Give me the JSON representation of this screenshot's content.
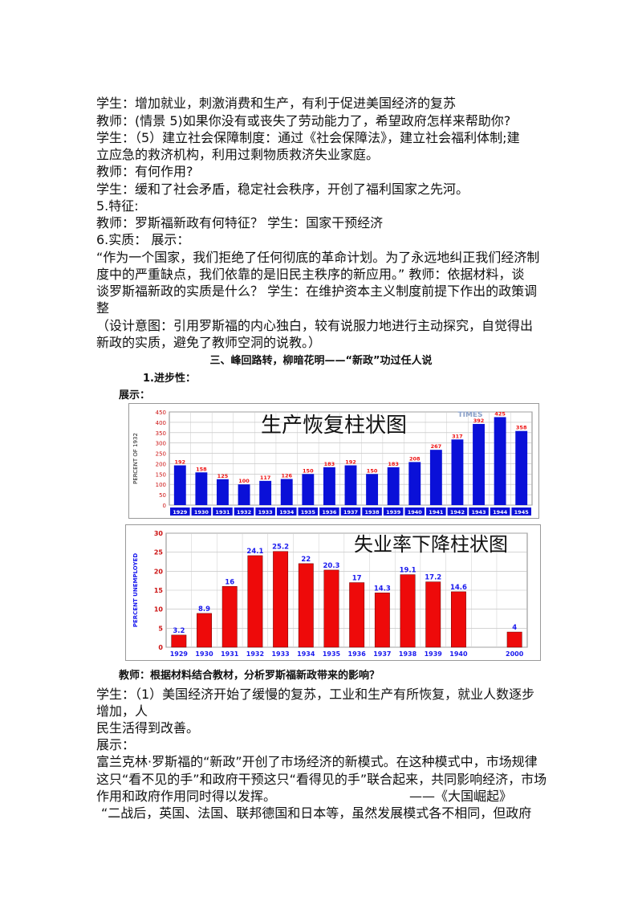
{
  "text": {
    "p1": "学生：增加就业，刺激消费和生产，有利于促进美国经济的复苏",
    "p2": "教师：(情景 5)如果你没有或丧失了劳动能力了，希望政府怎样来帮助你?",
    "p3a": "学生：（5）建立社会保障制度：通过《社会保障法》，建立社会福利体制;建",
    "p3b": "立应急的救济机构，利用过剩物质救济失业家庭。",
    "p4": "教师：有何作用?",
    "p5": "学生：缓和了社会矛盾，稳定社会秩序，开创了福利国家之先河。",
    "p6": "5.特征:",
    "p7": "教师：罗斯福新政有何特征？ 学生：国家干预经济",
    "p8": "6.实质：  展示：",
    "p9a": "“作为一个国家，我们拒绝了任何彻底的革命计划。为了永远地纠正我们经济制",
    "p9b": "度中的严重缺点，我们依靠的是旧民主秩序的新应用。” 教师：依据材料，谈",
    "p9c": "谈罗斯福新政的实质是什么？ 学生：在维护资本主义制度前提下作出的政策调",
    "p9d": "整",
    "p10a": "（设计意图：引用罗斯福的内心独白，较有说服力地进行主动探究，自觉得出",
    "p10b": "新政的实质，避免了教师空洞的说教。）",
    "section": "三、峰回路转，柳暗花明——“新政”功过任人说",
    "sub1": "1.进步性：",
    "show": "展示：",
    "teacher_q": "教师：根据材料结合教材，分析罗斯福新政带来的影响？",
    "s1a": "学生：（1）美国经济开始了缓慢的复苏，工业和生产有所恢复，就业人数逐步",
    "s1b": "增加，人",
    "s1c": "民生活得到改善。",
    "show2": "展示：",
    "q1a": "富兰克林·罗斯福的“新政”开创了市场经济的新模式。在这种模式中，市场规律",
    "q1b": "这只“看不见的手”和政府干预这只“看得见的手”联合起来，共同影响经济，市场",
    "q1c": "作用和政府作用同时得以发挥。",
    "q1src": "——《大国崛起》",
    "q2": "“二战后，英国、法国、联邦德国和日本等，虽然发展模式各不相同，但政府"
  },
  "colors": {
    "bar_blue": "#0a10d8",
    "bar_red": "#ee0a0a",
    "label_red": "#ee1111",
    "label_blue": "#1a1aee",
    "tick_red": "#cc1111"
  },
  "chart_data": [
    {
      "type": "bar",
      "title": "生产恢复柱状图",
      "ylabel": "PERCENT OF 1932",
      "watermark": "TIMES",
      "categories": [
        "1929",
        "1930",
        "1931",
        "1932",
        "1933",
        "1934",
        "1935",
        "1936",
        "1937",
        "1938",
        "1939",
        "1940",
        "1941",
        "1942",
        "1943",
        "1944",
        "1945"
      ],
      "values": [
        192,
        158,
        125,
        100,
        117,
        126,
        150,
        183,
        192,
        150,
        183,
        208,
        267,
        317,
        392,
        425,
        358
      ],
      "yticks": [
        "0",
        "50",
        "100",
        "150",
        "200",
        "250",
        "300",
        "350",
        "400",
        "450"
      ],
      "ylim": [
        0,
        450
      ],
      "grid": true
    },
    {
      "type": "bar",
      "title": "失业率下降柱状图",
      "ylabel": "PERCENT UNEMPLOYED",
      "categories": [
        "1929",
        "1930",
        "1931",
        "1932",
        "1933",
        "1934",
        "1935",
        "1936",
        "1937",
        "1938",
        "1939",
        "1940",
        "2000"
      ],
      "values": [
        3.2,
        8.9,
        16,
        24.1,
        25.2,
        22,
        20.3,
        17,
        14.3,
        19.1,
        17.2,
        14.6,
        4
      ],
      "value_labels": [
        "3.2",
        "8.9",
        "16",
        "24.1",
        "25.2",
        "22",
        "20.3",
        "17",
        "14.3",
        "19.1",
        "17.2",
        "14.6",
        "4"
      ],
      "yticks": [
        "0",
        "5",
        "10",
        "15",
        "20",
        "25",
        "30"
      ],
      "ylim": [
        0,
        30
      ],
      "grid": true
    }
  ]
}
